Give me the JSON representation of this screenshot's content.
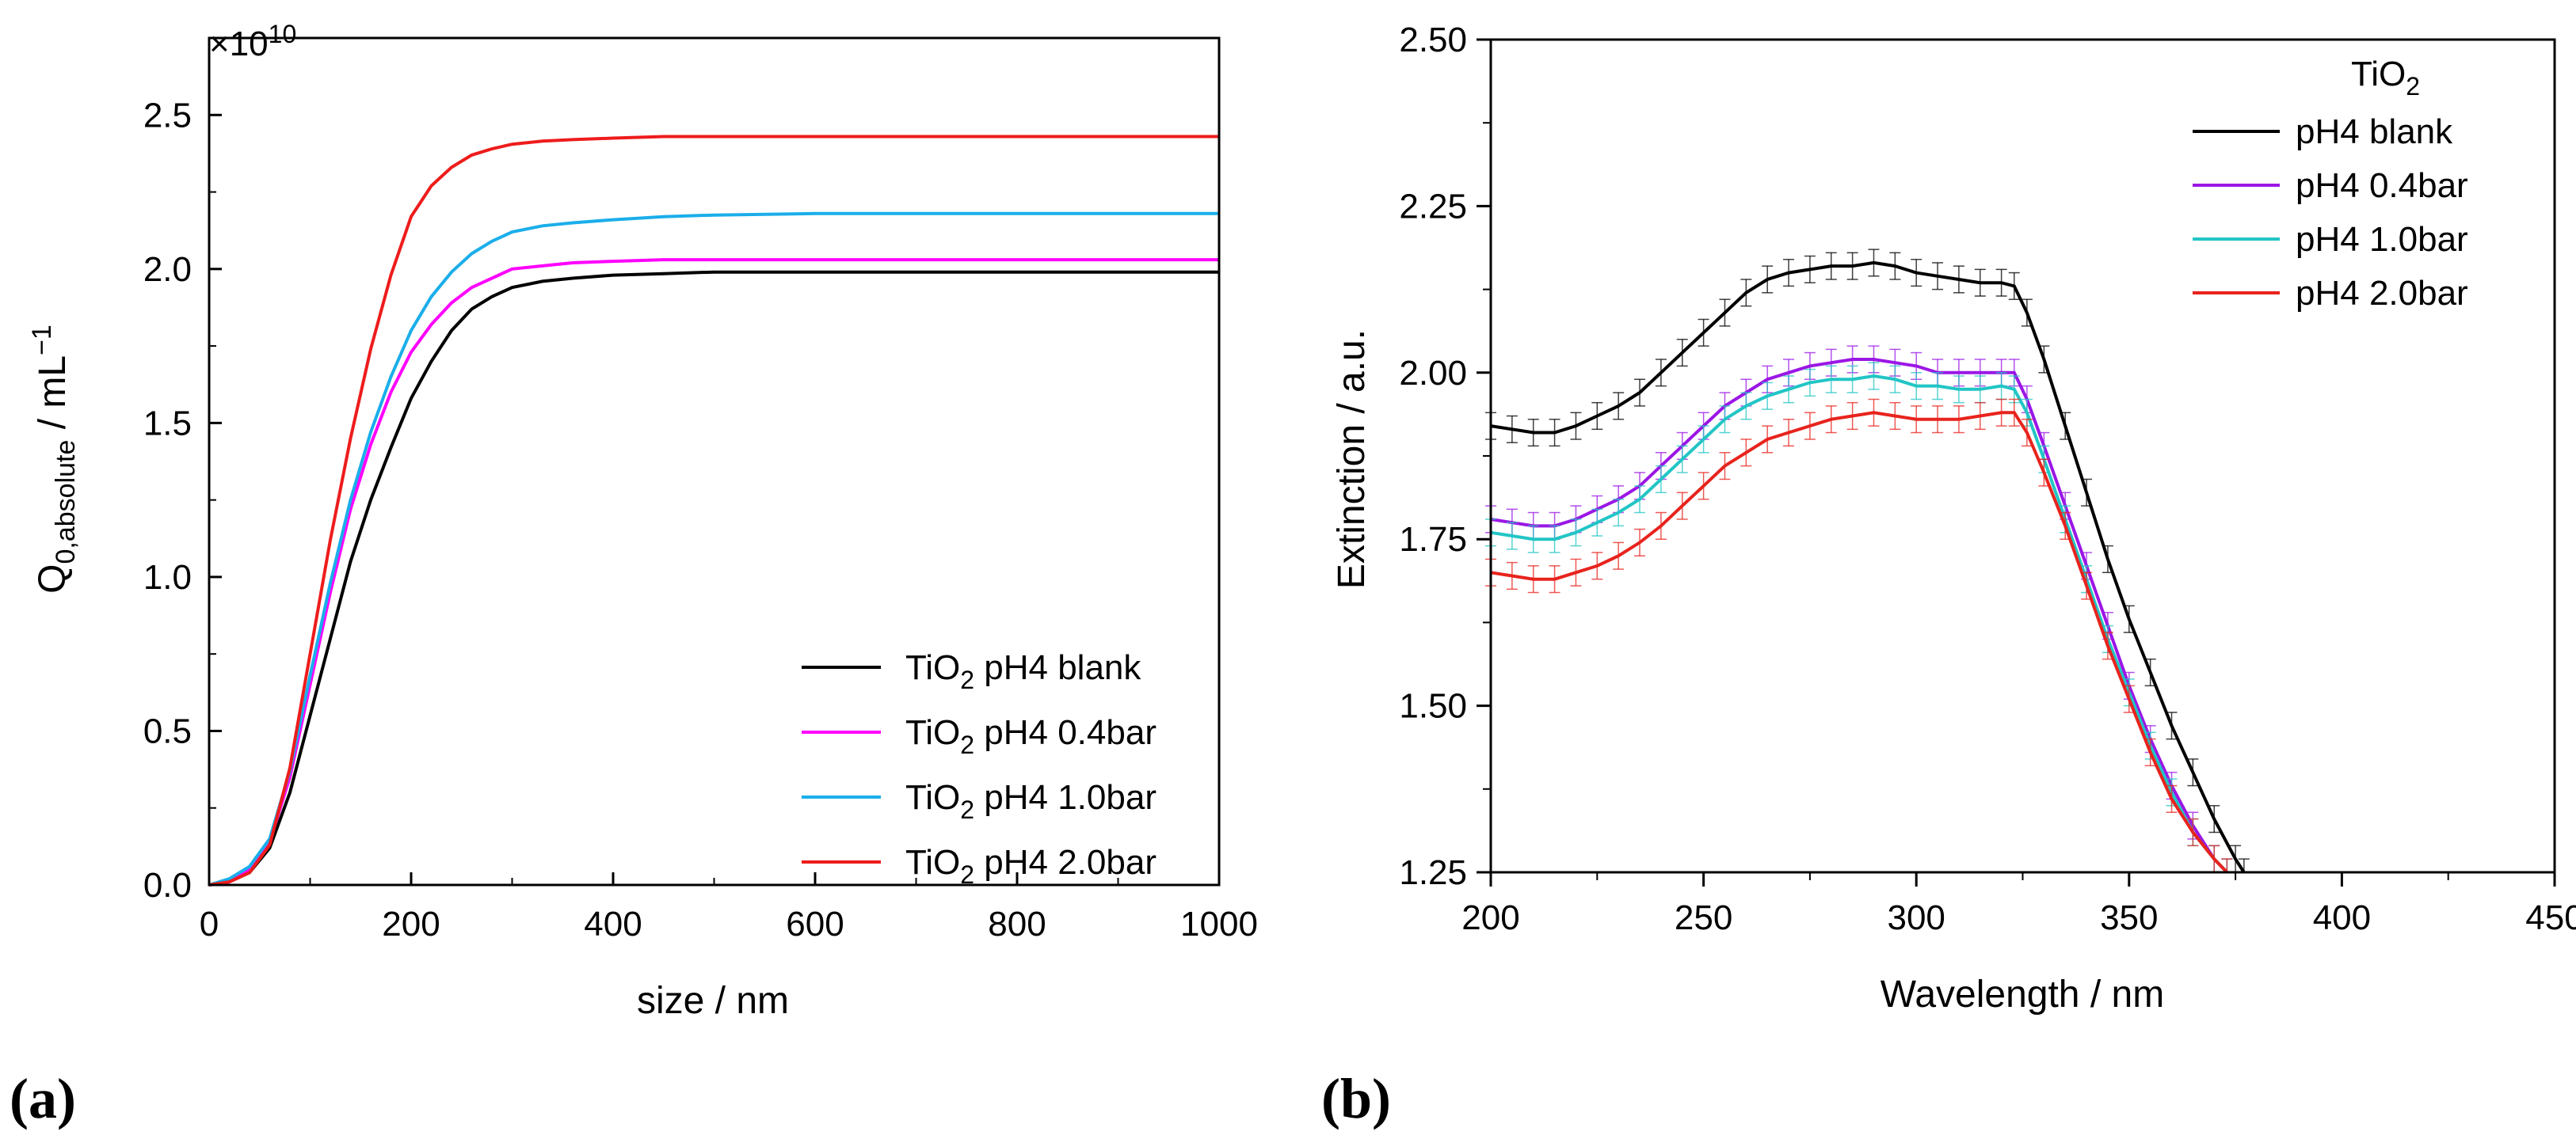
{
  "chart_data": [
    {
      "type": "line",
      "panel_label": "(a)",
      "xlabel": "size / nm",
      "ylabel_main": "Q",
      "ylabel_sub": "0,absolute",
      "ylabel_unit": " / mL",
      "ylabel_sup": "−1",
      "y_multiplier": "×10",
      "y_multiplier_exp": "10",
      "xlim": [
        0,
        1000
      ],
      "ylim": [
        0,
        2.75
      ],
      "xticks": [
        "0",
        "200",
        "400",
        "600",
        "800",
        "1000"
      ],
      "yticks": [
        "0.0",
        "0.5",
        "1.0",
        "1.5",
        "2.0",
        "2.5"
      ],
      "legend_position": "bottom-right",
      "series": [
        {
          "name": "blank",
          "legend_prefix": "TiO",
          "legend_sub": "2",
          "legend_suffix": " pH4 blank",
          "color": "#000000",
          "x": [
            0,
            20,
            40,
            60,
            80,
            100,
            120,
            140,
            160,
            180,
            200,
            220,
            240,
            260,
            280,
            300,
            330,
            360,
            400,
            450,
            500,
            600,
            700,
            800,
            900,
            1000
          ],
          "y": [
            0,
            0.01,
            0.04,
            0.12,
            0.3,
            0.55,
            0.8,
            1.05,
            1.25,
            1.42,
            1.58,
            1.7,
            1.8,
            1.87,
            1.91,
            1.94,
            1.96,
            1.97,
            1.98,
            1.985,
            1.99,
            1.99,
            1.99,
            1.99,
            1.99,
            1.99
          ]
        },
        {
          "name": "0.4bar",
          "legend_prefix": "TiO",
          "legend_sub": "2",
          "legend_suffix": " pH4 0.4bar",
          "color": "#ff00ff",
          "x": [
            0,
            20,
            40,
            60,
            80,
            100,
            120,
            140,
            160,
            180,
            200,
            220,
            240,
            260,
            280,
            300,
            330,
            360,
            400,
            450,
            500,
            600,
            700,
            800,
            900,
            1000
          ],
          "y": [
            0,
            0.01,
            0.05,
            0.14,
            0.35,
            0.65,
            0.95,
            1.22,
            1.43,
            1.6,
            1.73,
            1.82,
            1.89,
            1.94,
            1.97,
            2.0,
            2.01,
            2.02,
            2.025,
            2.03,
            2.03,
            2.03,
            2.03,
            2.03,
            2.03,
            2.03
          ]
        },
        {
          "name": "1.0bar",
          "legend_prefix": "TiO",
          "legend_sub": "2",
          "legend_suffix": " pH4 1.0bar",
          "color": "#1aaeea",
          "x": [
            0,
            20,
            40,
            60,
            80,
            100,
            120,
            140,
            160,
            180,
            200,
            220,
            240,
            260,
            280,
            300,
            330,
            360,
            400,
            450,
            500,
            600,
            700,
            800,
            900,
            1000
          ],
          "y": [
            0,
            0.02,
            0.06,
            0.15,
            0.37,
            0.68,
            0.98,
            1.25,
            1.47,
            1.65,
            1.8,
            1.91,
            1.99,
            2.05,
            2.09,
            2.12,
            2.14,
            2.15,
            2.16,
            2.17,
            2.175,
            2.18,
            2.18,
            2.18,
            2.18,
            2.18
          ]
        },
        {
          "name": "2.0bar",
          "legend_prefix": "TiO",
          "legend_sub": "2",
          "legend_suffix": " pH4 2.0bar",
          "color": "#ee1c1c",
          "x": [
            0,
            20,
            40,
            60,
            80,
            100,
            120,
            140,
            160,
            180,
            200,
            220,
            240,
            260,
            280,
            300,
            330,
            360,
            400,
            450,
            500,
            600,
            700,
            800,
            900,
            1000
          ],
          "y": [
            0,
            0.01,
            0.04,
            0.13,
            0.38,
            0.75,
            1.12,
            1.45,
            1.74,
            1.98,
            2.17,
            2.27,
            2.33,
            2.37,
            2.39,
            2.405,
            2.415,
            2.42,
            2.425,
            2.43,
            2.43,
            2.43,
            2.43,
            2.43,
            2.43,
            2.43
          ]
        }
      ]
    },
    {
      "type": "line",
      "panel_label": "(b)",
      "xlabel": "Wavelength / nm",
      "ylabel": "Extinction / a.u.",
      "xlim": [
        200,
        450
      ],
      "ylim": [
        1.25,
        2.5
      ],
      "xticks": [
        "200",
        "250",
        "300",
        "350",
        "400",
        "450"
      ],
      "yticks": [
        "1.25",
        "1.50",
        "1.75",
        "2.00",
        "2.25",
        "2.50"
      ],
      "legend_title_main": "TiO",
      "legend_title_sub": "2",
      "legend_position": "top-right",
      "error_bar": 0.02,
      "series": [
        {
          "name": "pH4  blank",
          "color": "#000000",
          "x": [
            200,
            205,
            210,
            215,
            220,
            225,
            230,
            235,
            240,
            245,
            250,
            255,
            260,
            265,
            270,
            275,
            280,
            285,
            290,
            295,
            300,
            305,
            310,
            315,
            320,
            323,
            326,
            330,
            335,
            340,
            345,
            350,
            355,
            360,
            365,
            370,
            375,
            377
          ],
          "y": [
            1.92,
            1.915,
            1.91,
            1.91,
            1.92,
            1.935,
            1.95,
            1.97,
            2.0,
            2.03,
            2.06,
            2.09,
            2.12,
            2.14,
            2.15,
            2.155,
            2.16,
            2.16,
            2.165,
            2.16,
            2.15,
            2.145,
            2.14,
            2.135,
            2.135,
            2.13,
            2.09,
            2.02,
            1.92,
            1.82,
            1.72,
            1.63,
            1.55,
            1.47,
            1.4,
            1.33,
            1.27,
            1.25
          ]
        },
        {
          "name": "pH4  0.4bar",
          "color": "#9b16e6",
          "x": [
            200,
            205,
            210,
            215,
            220,
            225,
            230,
            235,
            240,
            245,
            250,
            255,
            260,
            265,
            270,
            275,
            280,
            285,
            290,
            295,
            300,
            305,
            310,
            315,
            320,
            323,
            326,
            330,
            335,
            340,
            345,
            350,
            355,
            360,
            365,
            370,
            373
          ],
          "y": [
            1.78,
            1.775,
            1.77,
            1.77,
            1.78,
            1.795,
            1.81,
            1.83,
            1.86,
            1.89,
            1.92,
            1.95,
            1.97,
            1.99,
            2.0,
            2.01,
            2.015,
            2.02,
            2.02,
            2.015,
            2.01,
            2.0,
            2.0,
            2.0,
            2.0,
            2.0,
            1.96,
            1.89,
            1.8,
            1.71,
            1.62,
            1.53,
            1.45,
            1.38,
            1.32,
            1.27,
            1.25
          ]
        },
        {
          "name": "pH4  1.0bar",
          "color": "#22c5c5",
          "x": [
            200,
            205,
            210,
            215,
            220,
            225,
            230,
            235,
            240,
            245,
            250,
            255,
            260,
            265,
            270,
            275,
            280,
            285,
            290,
            295,
            300,
            305,
            310,
            315,
            320,
            323,
            326,
            330,
            335,
            340,
            345,
            350,
            355,
            360,
            365,
            370,
            373
          ],
          "y": [
            1.76,
            1.755,
            1.75,
            1.75,
            1.76,
            1.775,
            1.79,
            1.81,
            1.84,
            1.87,
            1.9,
            1.93,
            1.95,
            1.965,
            1.975,
            1.985,
            1.99,
            1.99,
            1.995,
            1.99,
            1.98,
            1.98,
            1.975,
            1.975,
            1.98,
            1.975,
            1.94,
            1.87,
            1.78,
            1.69,
            1.6,
            1.52,
            1.44,
            1.37,
            1.31,
            1.27,
            1.25
          ]
        },
        {
          "name": "pH4  2.0bar",
          "color": "#e8231d",
          "x": [
            200,
            205,
            210,
            215,
            220,
            225,
            230,
            235,
            240,
            245,
            250,
            255,
            260,
            265,
            270,
            275,
            280,
            285,
            290,
            295,
            300,
            305,
            310,
            315,
            320,
            323,
            326,
            330,
            335,
            340,
            345,
            350,
            355,
            360,
            365,
            370,
            373
          ],
          "y": [
            1.7,
            1.695,
            1.69,
            1.69,
            1.7,
            1.71,
            1.725,
            1.745,
            1.77,
            1.8,
            1.83,
            1.86,
            1.88,
            1.9,
            1.91,
            1.92,
            1.93,
            1.935,
            1.94,
            1.935,
            1.93,
            1.93,
            1.93,
            1.935,
            1.94,
            1.94,
            1.91,
            1.85,
            1.77,
            1.68,
            1.59,
            1.51,
            1.43,
            1.36,
            1.31,
            1.27,
            1.25
          ]
        }
      ]
    }
  ]
}
